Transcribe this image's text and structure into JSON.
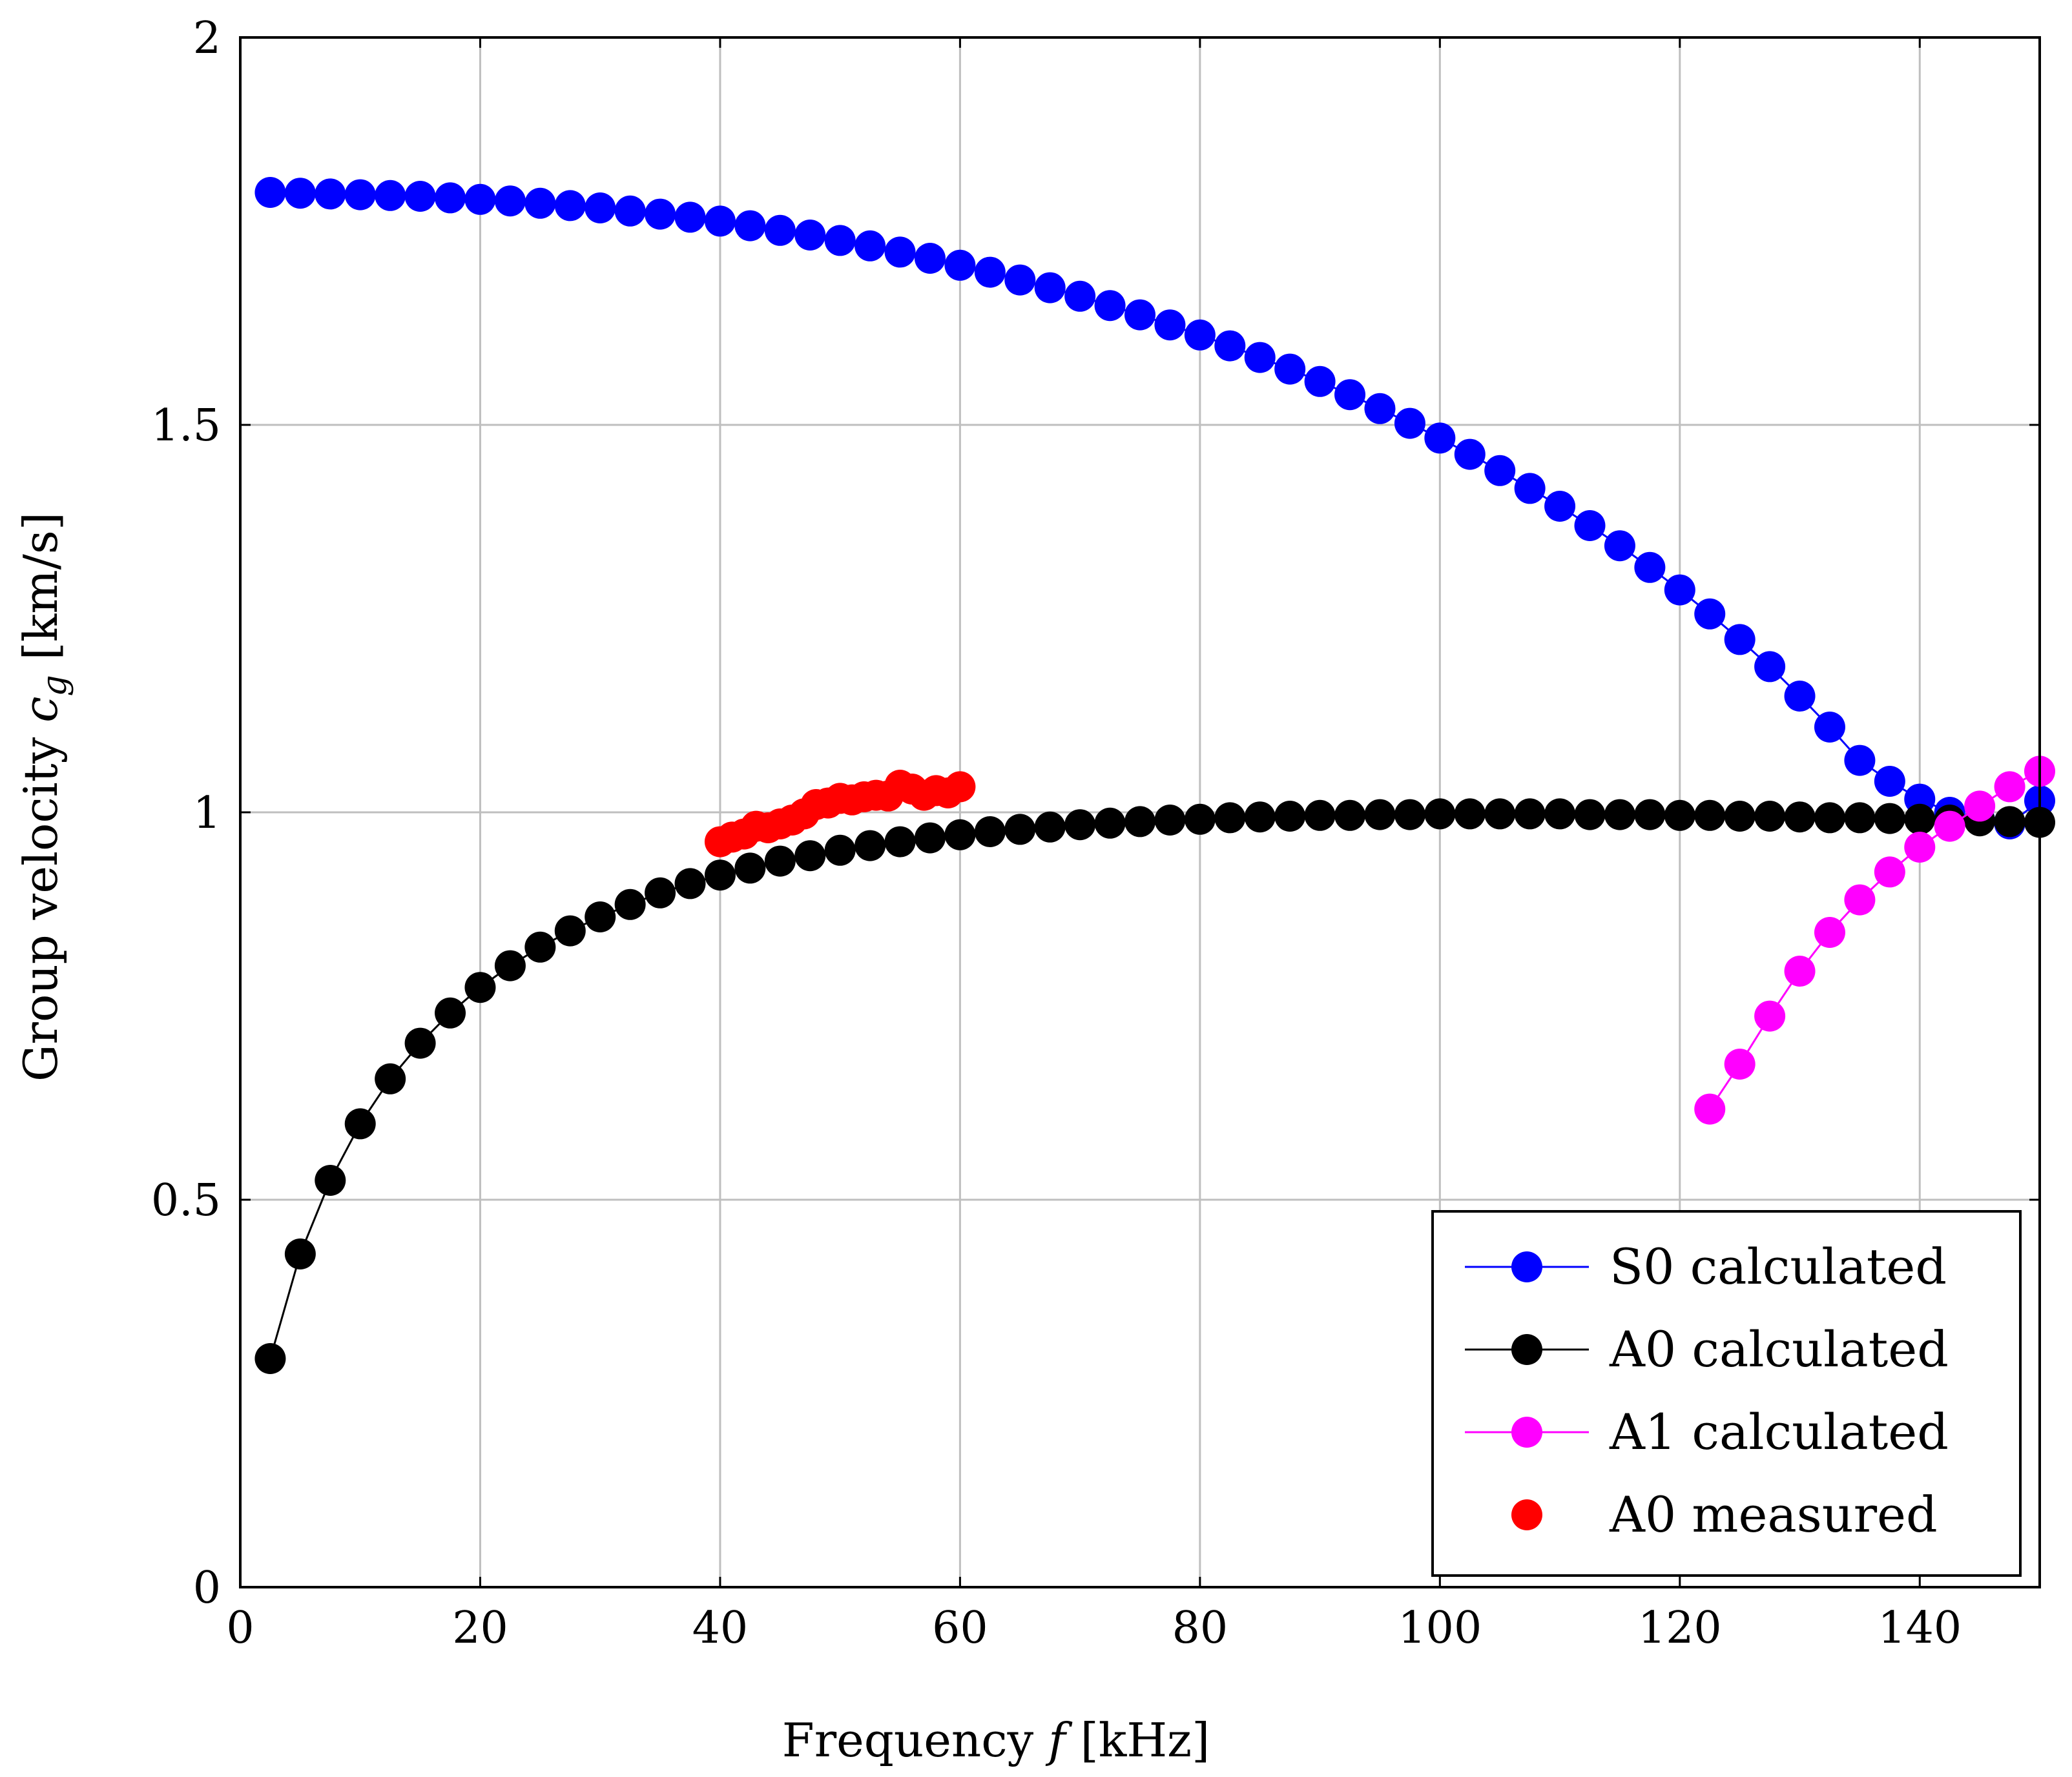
{
  "chart_data": {
    "type": "line",
    "title": "",
    "xlabel": "Frequency f [kHz]",
    "xlabel_parts": {
      "text": "Frequency ",
      "symbol": "f",
      "unit": " [kHz]"
    },
    "ylabel": "Group velocity c_g [km/s]",
    "ylabel_parts": {
      "text": "Group velocity ",
      "symbol": "c",
      "subscript": "g",
      "unit": " [km/s]"
    },
    "xlim": [
      0,
      150
    ],
    "ylim": [
      0,
      2
    ],
    "x_ticks": [
      0,
      20,
      40,
      60,
      80,
      100,
      120,
      140
    ],
    "x_tick_labels": [
      "0",
      "20",
      "40",
      "60",
      "80",
      "100",
      "120",
      "140"
    ],
    "y_ticks": [
      0,
      0.5,
      1,
      1.5,
      2
    ],
    "y_tick_labels": [
      "0",
      "0.5",
      "1",
      "1.5",
      "2"
    ],
    "grid": true,
    "legend_position": "bottom-right",
    "series": [
      {
        "name": "S0 calculated",
        "color": "#0000ff",
        "line": true,
        "x": [
          2.5,
          5,
          7.5,
          10,
          12.5,
          15,
          17.5,
          20,
          22.5,
          25,
          27.5,
          30,
          32.5,
          35,
          37.5,
          40,
          42.5,
          45,
          47.5,
          50,
          52.5,
          55,
          57.5,
          60,
          62.5,
          65,
          67.5,
          70,
          72.5,
          75,
          77.5,
          80,
          82.5,
          85,
          87.5,
          90,
          92.5,
          95,
          97.5,
          100,
          102.5,
          105,
          107.5,
          110,
          112.5,
          115,
          117.5,
          120,
          122.5,
          125,
          127.5,
          130,
          132.5,
          135,
          137.5,
          140,
          142.5,
          145,
          147.5,
          150
        ],
        "values": [
          1.8,
          1.799,
          1.798,
          1.797,
          1.796,
          1.795,
          1.793,
          1.791,
          1.789,
          1.786,
          1.783,
          1.78,
          1.776,
          1.772,
          1.768,
          1.763,
          1.757,
          1.751,
          1.745,
          1.738,
          1.731,
          1.723,
          1.715,
          1.706,
          1.697,
          1.687,
          1.677,
          1.666,
          1.654,
          1.642,
          1.629,
          1.616,
          1.602,
          1.587,
          1.572,
          1.556,
          1.539,
          1.521,
          1.502,
          1.483,
          1.462,
          1.441,
          1.418,
          1.395,
          1.37,
          1.344,
          1.316,
          1.287,
          1.256,
          1.223,
          1.188,
          1.15,
          1.11,
          1.067,
          1.04,
          1.017,
          1.0,
          0.99,
          0.985,
          1.015
        ]
      },
      {
        "name": "A0 calculated",
        "color": "#000000",
        "line": true,
        "x": [
          2.5,
          5,
          7.5,
          10,
          12.5,
          15,
          17.5,
          20,
          22.5,
          25,
          27.5,
          30,
          32.5,
          35,
          37.5,
          40,
          42.5,
          45,
          47.5,
          50,
          52.5,
          55,
          57.5,
          60,
          62.5,
          65,
          67.5,
          70,
          72.5,
          75,
          77.5,
          80,
          82.5,
          85,
          87.5,
          90,
          92.5,
          95,
          97.5,
          100,
          102.5,
          105,
          107.5,
          110,
          112.5,
          115,
          117.5,
          120,
          122.5,
          125,
          127.5,
          130,
          132.5,
          135,
          137.5,
          140,
          142.5,
          145,
          147.5,
          150
        ],
        "values": [
          0.295,
          0.43,
          0.525,
          0.598,
          0.656,
          0.702,
          0.741,
          0.774,
          0.802,
          0.826,
          0.847,
          0.865,
          0.881,
          0.896,
          0.908,
          0.919,
          0.928,
          0.937,
          0.944,
          0.951,
          0.957,
          0.962,
          0.967,
          0.971,
          0.975,
          0.978,
          0.981,
          0.984,
          0.986,
          0.988,
          0.99,
          0.991,
          0.993,
          0.994,
          0.995,
          0.996,
          0.996,
          0.997,
          0.997,
          0.998,
          0.998,
          0.998,
          0.998,
          0.998,
          0.997,
          0.997,
          0.997,
          0.996,
          0.996,
          0.995,
          0.995,
          0.994,
          0.993,
          0.993,
          0.992,
          0.991,
          0.99,
          0.989,
          0.988,
          0.987
        ]
      },
      {
        "name": "A1 calculated",
        "color": "#ff00ff",
        "line": true,
        "x": [
          122.5,
          125,
          127.5,
          130,
          132.5,
          135,
          137.5,
          140,
          142.5,
          145,
          147.5,
          150
        ],
        "values": [
          0.617,
          0.675,
          0.737,
          0.795,
          0.845,
          0.887,
          0.923,
          0.955,
          0.982,
          1.008,
          1.033,
          1.053
        ]
      },
      {
        "name": "A0 measured",
        "color": "#ff0000",
        "line": false,
        "x": [
          40,
          41,
          42,
          43,
          44,
          45,
          46,
          47,
          48,
          49,
          50,
          51,
          52,
          53,
          54,
          55,
          56,
          57,
          58,
          59,
          60
        ],
        "values": [
          0.962,
          0.968,
          0.972,
          0.982,
          0.98,
          0.985,
          0.99,
          0.998,
          1.01,
          1.012,
          1.018,
          1.016,
          1.02,
          1.022,
          1.021,
          1.035,
          1.03,
          1.022,
          1.028,
          1.025,
          1.033
        ]
      }
    ]
  }
}
